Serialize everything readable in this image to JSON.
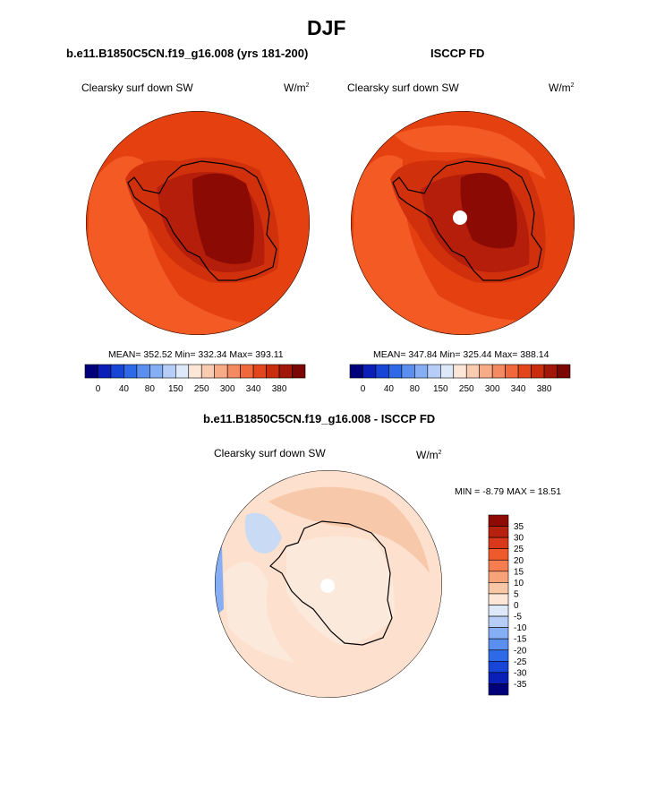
{
  "season": "DJF",
  "panels": [
    {
      "title": "b.e11.B1850C5CN.f19_g16.008 (yrs 181-200)",
      "variable": "Clearsky surf down SW",
      "units_base": "W/m",
      "units_exp": "2",
      "stats": "MEAN= 352.52  Min= 332.34  Max= 393.11"
    },
    {
      "title": "ISCCP FD",
      "variable": "Clearsky surf down SW",
      "units_base": "W/m",
      "units_exp": "2",
      "stats": "MEAN= 347.84  Min= 325.44  Max= 388.14"
    },
    {
      "title": "b.e11.B1850C5CN.f19_g16.008 - ISCCP FD",
      "variable": "Clearsky surf down SW",
      "units_base": "W/m",
      "units_exp": "2",
      "stats": "MIN =  -8.79 MAX =  18.51"
    }
  ],
  "colorbar_abs": {
    "colors": [
      "#00007a",
      "#0a1fb8",
      "#1745d6",
      "#2e6ae8",
      "#5a8ff0",
      "#86aef5",
      "#b5cdf7",
      "#dde9f8",
      "#fbe6d8",
      "#f9cbb0",
      "#f7ab87",
      "#f48a62",
      "#f0683c",
      "#e4461c",
      "#c92d0e",
      "#a21808",
      "#7a0704"
    ],
    "tick_labels": [
      "0",
      "40",
      "80",
      "150",
      "250",
      "300",
      "340",
      "380"
    ]
  },
  "colorbar_diff": {
    "colors_top_to_bottom": [
      "#8e0a05",
      "#b72110",
      "#d8391b",
      "#ef5a2c",
      "#f57d4f",
      "#f7a279",
      "#f9c6a6",
      "#fbe6d8",
      "#dde9f8",
      "#b5cdf7",
      "#86aef5",
      "#5a8ff0",
      "#2e6ae8",
      "#1745d6",
      "#0a1fb8",
      "#00007a"
    ],
    "tick_labels": [
      "35",
      "30",
      "25",
      "20",
      "15",
      "10",
      "5",
      "0",
      "-5",
      "-10",
      "-15",
      "-20",
      "-25",
      "-30",
      "-35"
    ]
  },
  "map_colors": {
    "ocean_outer": "#e54010",
    "ocean_inner": "#f45a24",
    "coast_band": "#d0300c",
    "interior_1": "#b51e0a",
    "interior_2": "#8c0a04",
    "diff_base": "#fde0cd",
    "diff_light": "#fbe9dc",
    "diff_mid": "#f8c8aa",
    "diff_blue": "#c9daf5"
  }
}
